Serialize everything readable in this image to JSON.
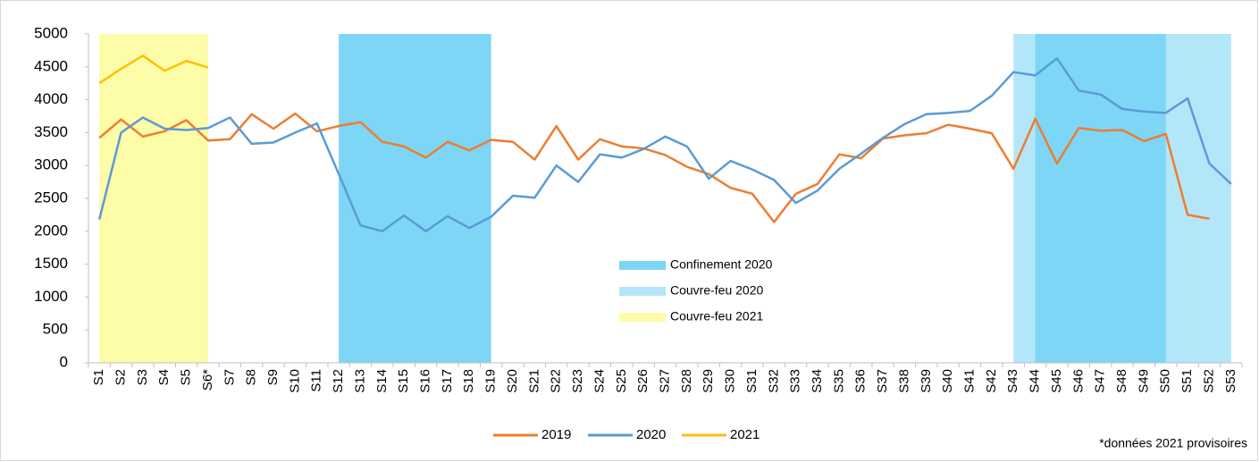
{
  "chart_data": {
    "type": "line",
    "categories": [
      "S1",
      "S2",
      "S3",
      "S4",
      "S5",
      "S6*",
      "S7",
      "S8",
      "S9",
      "S10",
      "S11",
      "S12",
      "S13",
      "S14",
      "S15",
      "S16",
      "S17",
      "S18",
      "S19",
      "S20",
      "S21",
      "S22",
      "S23",
      "S24",
      "S25",
      "S26",
      "S27",
      "S28",
      "S29",
      "S30",
      "S31",
      "S32",
      "S33",
      "S34",
      "S35",
      "S36",
      "S37",
      "S38",
      "S39",
      "S40",
      "S41",
      "S42",
      "S43",
      "S44",
      "S45",
      "S46",
      "S47",
      "S48",
      "S49",
      "S50",
      "S51",
      "S52",
      "S53"
    ],
    "series": [
      {
        "name": "2019",
        "color": "#ed7d31",
        "values": [
          3420,
          3700,
          3440,
          3520,
          3690,
          3380,
          3400,
          3780,
          3560,
          3790,
          3520,
          3600,
          3660,
          3360,
          3290,
          3120,
          3360,
          3230,
          3390,
          3360,
          3090,
          3600,
          3090,
          3400,
          3290,
          3260,
          3160,
          2980,
          2870,
          2660,
          2570,
          2140,
          2570,
          2720,
          3170,
          3110,
          3410,
          3460,
          3490,
          3620,
          3560,
          3490,
          2950,
          3710,
          3030,
          3570,
          3530,
          3540,
          3370,
          3480,
          2250,
          2190,
          null
        ]
      },
      {
        "name": "2020",
        "color": "#5b9bd5",
        "values": [
          2180,
          3500,
          3730,
          3560,
          3540,
          3570,
          3730,
          3330,
          3350,
          3500,
          3640,
          2870,
          2090,
          2000,
          2240,
          2000,
          2230,
          2050,
          2220,
          2540,
          2510,
          3000,
          2750,
          3170,
          3120,
          3250,
          3440,
          3290,
          2800,
          3070,
          2940,
          2780,
          2430,
          2620,
          2950,
          3180,
          3420,
          3630,
          3780,
          3800,
          3830,
          4060,
          4420,
          4370,
          4630,
          4140,
          4080,
          3860,
          3820,
          3800,
          4020,
          3030,
          2720
        ]
      },
      {
        "name": "2021",
        "color": "#ffc000",
        "values": [
          4250,
          4470,
          4670,
          4440,
          4590,
          4490,
          null,
          null,
          null,
          null,
          null,
          null,
          null,
          null,
          null,
          null,
          null,
          null,
          null,
          null,
          null,
          null,
          null,
          null,
          null,
          null,
          null,
          null,
          null,
          null,
          null,
          null,
          null,
          null,
          null,
          null,
          null,
          null,
          null,
          null,
          null,
          null,
          null,
          null,
          null,
          null,
          null,
          null,
          null,
          null,
          null,
          null,
          null
        ]
      }
    ],
    "shaded_regions": [
      {
        "name": "Confinement 2020",
        "color": "#7dd6f5",
        "ranges": [
          [
            11,
            18
          ],
          [
            43,
            49
          ]
        ]
      },
      {
        "name": "Couvre-feu 2020",
        "color": "#b4e6f9",
        "ranges": [
          [
            42,
            52
          ]
        ]
      },
      {
        "name": "Couvre-feu 2021",
        "color": "#fdfca8",
        "ranges": [
          [
            0,
            5
          ]
        ]
      }
    ],
    "ylim": [
      0,
      5000
    ],
    "yticks": [
      0,
      500,
      1000,
      1500,
      2000,
      2500,
      3000,
      3500,
      4000,
      4500,
      5000
    ],
    "footnote": "*données 2021 provisoires"
  }
}
